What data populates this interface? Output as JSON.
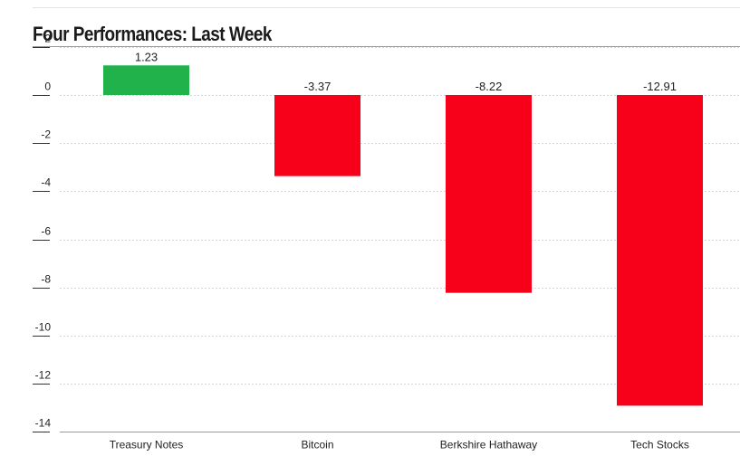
{
  "chart_data": {
    "type": "bar",
    "title": "Four Performances: Last Week",
    "categories": [
      "Treasury Notes",
      "Bitcoin",
      "Berkshire Hathaway",
      "Tech Stocks"
    ],
    "values": [
      1.23,
      -3.37,
      -8.22,
      -12.91
    ],
    "data_labels": [
      "1.23",
      "-3.37",
      "-8.22",
      "-12.91"
    ],
    "y_ticks": [
      2,
      0,
      -2,
      -4,
      -6,
      -8,
      -10,
      -12,
      -14
    ],
    "ylim": [
      -14,
      2
    ],
    "grid": true,
    "legend": "none",
    "colors": {
      "positive": "#21b24b",
      "negative": "#f70019"
    }
  }
}
